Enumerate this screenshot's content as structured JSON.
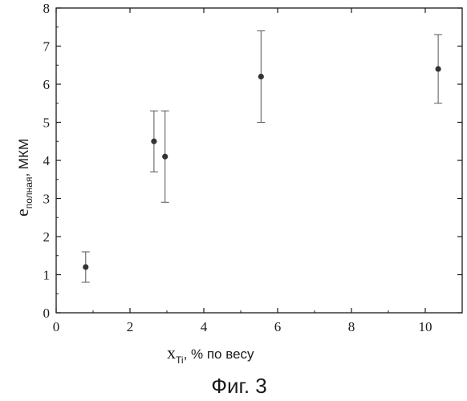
{
  "chart_data": {
    "type": "scatter",
    "xlim": [
      0,
      11
    ],
    "ylim": [
      0,
      8
    ],
    "x_ticks": [
      "0",
      "2",
      "4",
      "6",
      "8",
      "10"
    ],
    "y_ticks": [
      "0",
      "1",
      "2",
      "3",
      "4",
      "5",
      "6",
      "7",
      "8"
    ],
    "ylabel": {
      "main": "e",
      "sub": "полная",
      "unit": ", МКМ"
    },
    "xlabel": {
      "main": "x",
      "sub": "Ti",
      "unit": ", % по весу"
    },
    "grid": false,
    "error_bars": true,
    "points": [
      {
        "x": 0.8,
        "y": 1.2,
        "err_low": 0.8,
        "err_high": 1.6
      },
      {
        "x": 2.65,
        "y": 4.5,
        "err_low": 3.7,
        "err_high": 5.3
      },
      {
        "x": 2.95,
        "y": 4.1,
        "err_low": 2.9,
        "err_high": 5.3
      },
      {
        "x": 5.55,
        "y": 6.2,
        "err_low": 5.0,
        "err_high": 7.4
      },
      {
        "x": 10.35,
        "y": 6.4,
        "err_low": 5.5,
        "err_high": 7.3
      }
    ],
    "marker_color": "#333333",
    "axis_color": "#1a1a1a"
  },
  "caption": "Фиг. 3"
}
